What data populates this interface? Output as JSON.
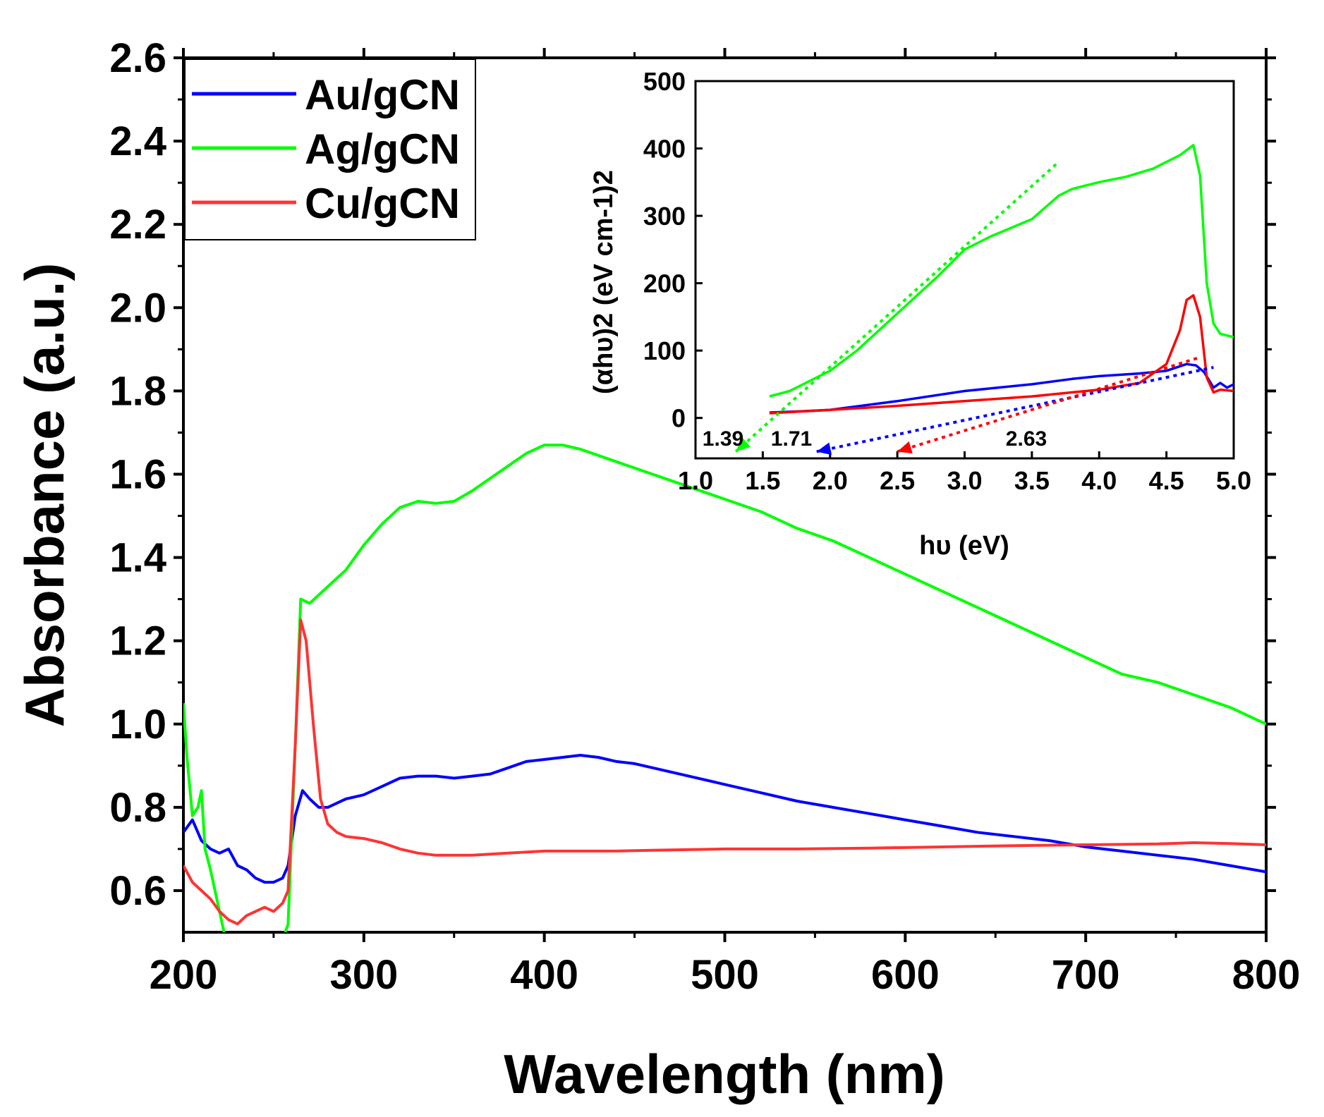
{
  "chart_data": [
    {
      "type": "line",
      "title": "",
      "xlabel": "Wavelength (nm)",
      "ylabel": "Absorbance (a.u.)",
      "xlim": [
        200,
        800
      ],
      "ylim": [
        0.5,
        2.6
      ],
      "xticks": [
        "200",
        "300",
        "400",
        "500",
        "600",
        "700",
        "800"
      ],
      "yticks": [
        "0.6",
        "0.8",
        "1.0",
        "1.2",
        "1.4",
        "1.6",
        "1.8",
        "2.0",
        "2.2",
        "2.4",
        "2.6"
      ],
      "legend": "top-left",
      "series": [
        {
          "name": "Au/gCN",
          "color": "#0000ff",
          "x": [
            200,
            205,
            210,
            215,
            220,
            225,
            230,
            235,
            240,
            245,
            250,
            255,
            258,
            262,
            266,
            270,
            275,
            280,
            290,
            300,
            310,
            320,
            330,
            340,
            350,
            360,
            370,
            380,
            390,
            400,
            410,
            420,
            430,
            440,
            450,
            460,
            480,
            500,
            520,
            540,
            560,
            580,
            600,
            620,
            640,
            660,
            680,
            700,
            720,
            740,
            760,
            780,
            800
          ],
          "y": [
            0.74,
            0.77,
            0.72,
            0.7,
            0.69,
            0.7,
            0.66,
            0.65,
            0.63,
            0.62,
            0.62,
            0.63,
            0.66,
            0.78,
            0.84,
            0.82,
            0.8,
            0.8,
            0.82,
            0.83,
            0.85,
            0.87,
            0.875,
            0.875,
            0.87,
            0.875,
            0.88,
            0.895,
            0.91,
            0.915,
            0.92,
            0.925,
            0.92,
            0.91,
            0.905,
            0.895,
            0.875,
            0.855,
            0.835,
            0.815,
            0.8,
            0.785,
            0.77,
            0.755,
            0.74,
            0.73,
            0.72,
            0.705,
            0.695,
            0.685,
            0.675,
            0.66,
            0.645
          ]
        },
        {
          "name": "Ag/gCN",
          "color": "#00ff00",
          "x": [
            200,
            202,
            205,
            208,
            210,
            212,
            215,
            220,
            225,
            230,
            240,
            250,
            255,
            258,
            262,
            265,
            270,
            275,
            280,
            290,
            300,
            310,
            320,
            330,
            340,
            350,
            360,
            370,
            380,
            390,
            400,
            410,
            420,
            440,
            460,
            480,
            500,
            520,
            540,
            560,
            580,
            600,
            620,
            640,
            660,
            680,
            700,
            720,
            740,
            760,
            780,
            800
          ],
          "y": [
            1.05,
            0.92,
            0.78,
            0.8,
            0.84,
            0.7,
            0.65,
            0.55,
            0.45,
            0.4,
            0.42,
            0.45,
            0.48,
            0.52,
            0.95,
            1.3,
            1.29,
            1.31,
            1.33,
            1.37,
            1.43,
            1.48,
            1.52,
            1.535,
            1.53,
            1.535,
            1.56,
            1.59,
            1.62,
            1.65,
            1.67,
            1.67,
            1.66,
            1.63,
            1.6,
            1.57,
            1.54,
            1.51,
            1.47,
            1.44,
            1.4,
            1.36,
            1.32,
            1.28,
            1.24,
            1.2,
            1.16,
            1.12,
            1.1,
            1.07,
            1.04,
            1.0
          ]
        },
        {
          "name": "Cu/gCN",
          "color": "#ff3333",
          "x": [
            200,
            205,
            210,
            215,
            220,
            225,
            230,
            235,
            240,
            245,
            250,
            255,
            258,
            262,
            265,
            268,
            272,
            276,
            280,
            285,
            290,
            300,
            310,
            320,
            330,
            340,
            350,
            360,
            380,
            400,
            420,
            440,
            460,
            500,
            540,
            580,
            620,
            660,
            700,
            740,
            760,
            780,
            800
          ],
          "y": [
            0.66,
            0.62,
            0.6,
            0.58,
            0.55,
            0.53,
            0.52,
            0.54,
            0.55,
            0.56,
            0.55,
            0.57,
            0.6,
            0.95,
            1.25,
            1.2,
            1.0,
            0.82,
            0.76,
            0.74,
            0.73,
            0.725,
            0.715,
            0.7,
            0.69,
            0.685,
            0.685,
            0.685,
            0.69,
            0.695,
            0.695,
            0.695,
            0.697,
            0.7,
            0.7,
            0.702,
            0.705,
            0.708,
            0.71,
            0.712,
            0.715,
            0.713,
            0.71
          ]
        }
      ]
    },
    {
      "type": "line",
      "title": "",
      "xlabel": "hυ (eV)",
      "ylabel": "(αhυ)2 (eV cm-1)2",
      "xlim": [
        1.0,
        5.0
      ],
      "ylim": [
        -60,
        500
      ],
      "xticks": [
        "1.0",
        "1.5",
        "2.0",
        "2.5",
        "3.0",
        "3.5",
        "4.0",
        "4.5",
        "5.0"
      ],
      "yticks": [
        "0",
        "100",
        "200",
        "300",
        "400",
        "500"
      ],
      "annotations": [
        "1.39",
        "1.71",
        "2.63"
      ],
      "series": [
        {
          "color": "#0000ff",
          "x": [
            1.55,
            1.8,
            2.0,
            2.5,
            3.0,
            3.5,
            3.8,
            4.0,
            4.3,
            4.5,
            4.65,
            4.72,
            4.78,
            4.85,
            4.9,
            4.95,
            5.0
          ],
          "y": [
            8,
            10,
            12,
            25,
            40,
            50,
            58,
            62,
            66,
            70,
            80,
            78,
            68,
            45,
            52,
            45,
            50
          ]
        },
        {
          "color": "#00ff00",
          "x": [
            1.55,
            1.7,
            2.0,
            2.2,
            2.5,
            2.8,
            3.0,
            3.2,
            3.5,
            3.7,
            3.8,
            4.0,
            4.2,
            4.4,
            4.6,
            4.7,
            4.75,
            4.8,
            4.85,
            4.9,
            5.0
          ],
          "y": [
            32,
            40,
            70,
            100,
            155,
            210,
            250,
            270,
            295,
            330,
            340,
            350,
            358,
            370,
            390,
            405,
            360,
            200,
            140,
            125,
            120
          ]
        },
        {
          "color": "#ff0000",
          "x": [
            1.55,
            2.0,
            2.5,
            3.0,
            3.5,
            4.0,
            4.3,
            4.5,
            4.6,
            4.65,
            4.7,
            4.75,
            4.8,
            4.85,
            4.9,
            5.0
          ],
          "y": [
            7,
            12,
            18,
            25,
            32,
            42,
            52,
            80,
            130,
            175,
            182,
            150,
            60,
            38,
            42,
            40
          ]
        },
        {
          "color": "#00ff00",
          "style": "dotted",
          "x": [
            1.3,
            3.7
          ],
          "y": [
            -50,
            380
          ]
        },
        {
          "color": "#0000ff",
          "style": "dotted",
          "x": [
            1.9,
            4.85
          ],
          "y": [
            -50,
            75
          ]
        },
        {
          "color": "#ff0000",
          "style": "dotted",
          "x": [
            2.5,
            4.75
          ],
          "y": [
            -50,
            90
          ]
        }
      ]
    }
  ]
}
